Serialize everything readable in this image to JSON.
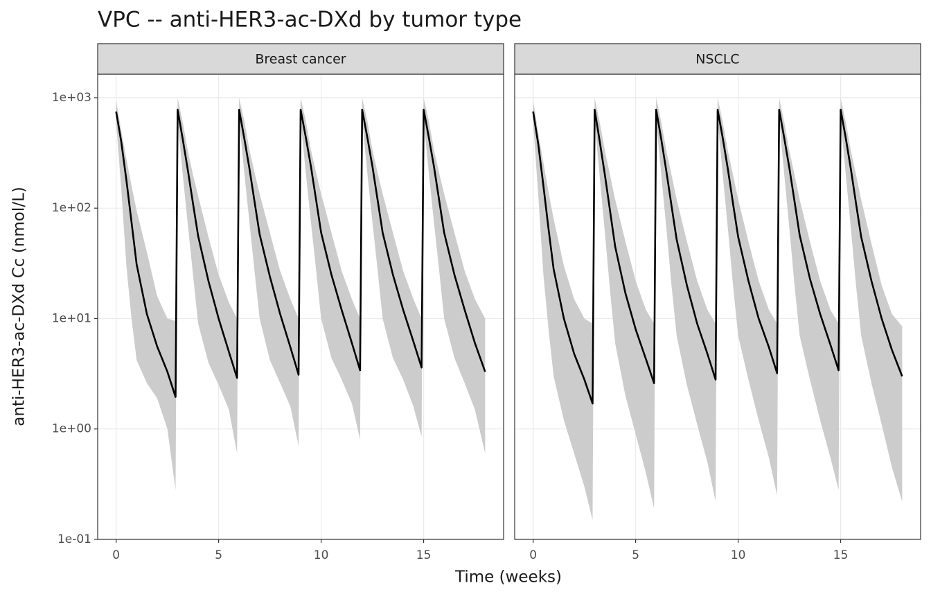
{
  "chart_data": {
    "type": "line",
    "title": "VPC -- anti-HER3-ac-DXd by tumor type",
    "x_label": "Time (weeks)",
    "y_label": "anti-HER3-ac-DXd Cc (nmol/L)",
    "log_y": true,
    "grid": true,
    "line_color": "#000000",
    "ribbon_color": "#cccccc",
    "xlim": [
      -0.9,
      18.9
    ],
    "xticks": [
      0,
      5,
      10,
      15
    ],
    "ylim": [
      0.1,
      1634
    ],
    "yticks": [
      {
        "value": 0.1,
        "label": "1e-01"
      },
      {
        "value": 1,
        "label": "1e+00"
      },
      {
        "value": 10,
        "label": "1e+01"
      },
      {
        "value": 100,
        "label": "1e+02"
      },
      {
        "value": 1000,
        "label": "1e+03"
      }
    ],
    "panels": [
      {
        "name": "Breast cancer",
        "x": [
          0,
          0.25,
          0.5,
          0.75,
          1,
          1.5,
          2,
          2.5,
          2.9,
          3,
          3.25,
          3.5,
          3.75,
          4,
          4.5,
          5,
          5.5,
          5.9,
          6,
          6.25,
          6.5,
          6.75,
          7,
          7.5,
          8,
          8.5,
          8.9,
          9,
          9.25,
          9.5,
          9.75,
          10,
          10.5,
          11,
          11.5,
          11.9,
          12,
          12.25,
          12.5,
          12.75,
          13,
          13.5,
          14,
          14.5,
          14.9,
          15,
          15.25,
          15.5,
          15.75,
          16,
          16.5,
          17,
          17.5,
          18
        ],
        "median": [
          750,
          400,
          180,
          75,
          31,
          11,
          5.6,
          3.3,
          1.95,
          780,
          420,
          220,
          110,
          56,
          22,
          10,
          5,
          2.9,
          780,
          430,
          230,
          115,
          58,
          24,
          11,
          5.5,
          3.1,
          780,
          440,
          240,
          120,
          60,
          25,
          12,
          6,
          3.4,
          780,
          440,
          240,
          120,
          60,
          25,
          12,
          6.2,
          3.6,
          780,
          440,
          240,
          120,
          60,
          25,
          12,
          6,
          3.3
        ],
        "lower": [
          600,
          150,
          30,
          10,
          4.2,
          2.6,
          1.9,
          1.0,
          0.28,
          620,
          200,
          70,
          25,
          9,
          4,
          2.5,
          1.5,
          0.6,
          620,
          210,
          75,
          27,
          10,
          4.2,
          2.6,
          1.6,
          0.7,
          620,
          210,
          75,
          28,
          10,
          4.4,
          2.8,
          1.7,
          0.8,
          620,
          210,
          75,
          28,
          10,
          4.4,
          2.8,
          1.6,
          0.85,
          620,
          210,
          75,
          28,
          10,
          4.4,
          2.6,
          1.5,
          0.6
        ],
        "upper": [
          950,
          500,
          280,
          160,
          95,
          40,
          16,
          10,
          9.5,
          1000,
          600,
          330,
          200,
          130,
          55,
          25,
          14,
          10,
          1000,
          620,
          340,
          210,
          135,
          60,
          27,
          15,
          10,
          1000,
          620,
          340,
          210,
          135,
          60,
          27,
          15,
          10,
          1000,
          620,
          340,
          210,
          135,
          60,
          27,
          15,
          10,
          1000,
          620,
          340,
          210,
          135,
          60,
          27,
          15,
          10
        ]
      },
      {
        "name": "NSCLC",
        "x": [
          0,
          0.25,
          0.5,
          0.75,
          1,
          1.5,
          2,
          2.5,
          2.9,
          3,
          3.25,
          3.5,
          3.75,
          4,
          4.5,
          5,
          5.5,
          5.9,
          6,
          6.25,
          6.5,
          6.75,
          7,
          7.5,
          8,
          8.5,
          8.9,
          9,
          9.25,
          9.5,
          9.75,
          10,
          10.5,
          11,
          11.5,
          11.9,
          12,
          12.25,
          12.5,
          12.75,
          13,
          13.5,
          14,
          14.5,
          14.9,
          15,
          15.25,
          15.5,
          15.75,
          16,
          16.5,
          17,
          17.5,
          18
        ],
        "median": [
          750,
          380,
          160,
          65,
          28,
          10,
          4.8,
          2.8,
          1.7,
          780,
          400,
          200,
          95,
          45,
          17,
          8,
          4.3,
          2.6,
          780,
          420,
          215,
          105,
          52,
          20,
          9,
          4.8,
          2.8,
          780,
          430,
          225,
          110,
          55,
          22,
          10,
          5.5,
          3.2,
          780,
          430,
          230,
          115,
          57,
          23,
          11,
          5.8,
          3.4,
          780,
          430,
          225,
          110,
          55,
          22,
          10,
          5.2,
          3.0
        ],
        "lower": [
          600,
          130,
          25,
          8,
          3,
          1.2,
          0.6,
          0.3,
          0.15,
          620,
          190,
          60,
          18,
          6,
          2,
          0.9,
          0.4,
          0.19,
          620,
          200,
          65,
          20,
          7,
          2.5,
          1.1,
          0.5,
          0.22,
          620,
          200,
          65,
          20,
          7,
          2.8,
          1.2,
          0.55,
          0.25,
          620,
          200,
          65,
          20,
          7,
          2.8,
          1.2,
          0.55,
          0.28,
          620,
          200,
          65,
          20,
          7,
          2.6,
          1.1,
          0.45,
          0.22
        ],
        "upper": [
          950,
          480,
          260,
          140,
          80,
          30,
          15,
          10,
          9,
          1000,
          600,
          330,
          200,
          120,
          50,
          22,
          12,
          9,
          1000,
          600,
          330,
          200,
          120,
          50,
          22,
          12,
          9,
          1000,
          600,
          330,
          200,
          120,
          50,
          22,
          12,
          9,
          1000,
          600,
          330,
          200,
          120,
          50,
          22,
          12,
          9,
          1000,
          600,
          330,
          200,
          120,
          48,
          20,
          11,
          8.5
        ]
      }
    ]
  }
}
